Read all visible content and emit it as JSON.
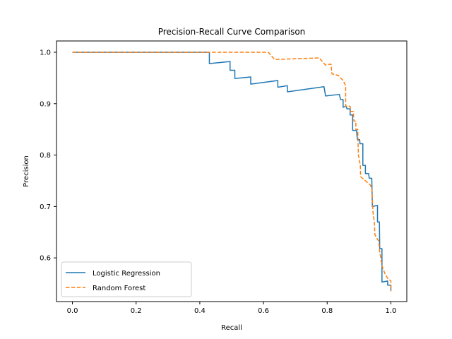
{
  "chart_data": {
    "type": "line",
    "title": "Precision-Recall Curve Comparison",
    "xlabel": "Recall",
    "ylabel": "Precision",
    "xlim": [
      -0.05,
      1.05
    ],
    "ylim": [
      0.515,
      1.022
    ],
    "xticks": [
      0.0,
      0.2,
      0.4,
      0.6,
      0.8,
      1.0
    ],
    "xtick_labels": [
      "0.0",
      "0.2",
      "0.4",
      "0.6",
      "0.8",
      "1.0"
    ],
    "yticks": [
      0.6,
      0.7,
      0.8,
      0.9,
      1.0
    ],
    "ytick_labels": [
      "0.6",
      "0.7",
      "0.8",
      "0.9",
      "1.0"
    ],
    "grid": false,
    "legend_position": "lower-left",
    "series": [
      {
        "name": "Logistic Regression",
        "color": "#1f77b4",
        "linestyle": "solid",
        "points": [
          [
            0.0,
            1.0
          ],
          [
            0.43,
            1.0
          ],
          [
            0.43,
            0.978
          ],
          [
            0.495,
            0.982
          ],
          [
            0.495,
            0.965
          ],
          [
            0.51,
            0.965
          ],
          [
            0.51,
            0.949
          ],
          [
            0.56,
            0.952
          ],
          [
            0.56,
            0.938
          ],
          [
            0.645,
            0.945
          ],
          [
            0.645,
            0.932
          ],
          [
            0.675,
            0.935
          ],
          [
            0.675,
            0.923
          ],
          [
            0.79,
            0.933
          ],
          [
            0.795,
            0.915
          ],
          [
            0.838,
            0.918
          ],
          [
            0.842,
            0.908
          ],
          [
            0.85,
            0.908
          ],
          [
            0.85,
            0.893
          ],
          [
            0.86,
            0.895
          ],
          [
            0.862,
            0.89
          ],
          [
            0.872,
            0.89
          ],
          [
            0.872,
            0.878
          ],
          [
            0.88,
            0.878
          ],
          [
            0.88,
            0.848
          ],
          [
            0.892,
            0.848
          ],
          [
            0.895,
            0.83
          ],
          [
            0.902,
            0.83
          ],
          [
            0.903,
            0.822
          ],
          [
            0.912,
            0.822
          ],
          [
            0.912,
            0.78
          ],
          [
            0.92,
            0.78
          ],
          [
            0.92,
            0.764
          ],
          [
            0.93,
            0.764
          ],
          [
            0.932,
            0.755
          ],
          [
            0.94,
            0.755
          ],
          [
            0.942,
            0.7
          ],
          [
            0.958,
            0.702
          ],
          [
            0.958,
            0.67
          ],
          [
            0.964,
            0.67
          ],
          [
            0.965,
            0.618
          ],
          [
            0.972,
            0.618
          ],
          [
            0.972,
            0.553
          ],
          [
            0.99,
            0.555
          ],
          [
            0.99,
            0.547
          ],
          [
            1.0,
            0.547
          ],
          [
            1.0,
            0.537
          ]
        ]
      },
      {
        "name": "Random Forest",
        "color": "#ff7f0e",
        "linestyle": "dashed",
        "points": [
          [
            0.0,
            1.0
          ],
          [
            0.615,
            1.0
          ],
          [
            0.635,
            0.986
          ],
          [
            0.775,
            0.989
          ],
          [
            0.795,
            0.975
          ],
          [
            0.812,
            0.977
          ],
          [
            0.815,
            0.958
          ],
          [
            0.835,
            0.955
          ],
          [
            0.85,
            0.945
          ],
          [
            0.858,
            0.935
          ],
          [
            0.858,
            0.895
          ],
          [
            0.872,
            0.895
          ],
          [
            0.874,
            0.885
          ],
          [
            0.882,
            0.885
          ],
          [
            0.884,
            0.866
          ],
          [
            0.89,
            0.866
          ],
          [
            0.89,
            0.85
          ],
          [
            0.896,
            0.85
          ],
          [
            0.898,
            0.8
          ],
          [
            0.904,
            0.78
          ],
          [
            0.905,
            0.758
          ],
          [
            0.935,
            0.742
          ],
          [
            0.94,
            0.735
          ],
          [
            0.944,
            0.688
          ],
          [
            0.948,
            0.67
          ],
          [
            0.95,
            0.645
          ],
          [
            0.962,
            0.632
          ],
          [
            0.965,
            0.612
          ],
          [
            0.972,
            0.585
          ],
          [
            0.982,
            0.568
          ],
          [
            0.99,
            0.56
          ],
          [
            1.0,
            0.555
          ],
          [
            1.0,
            0.535
          ]
        ]
      }
    ]
  }
}
